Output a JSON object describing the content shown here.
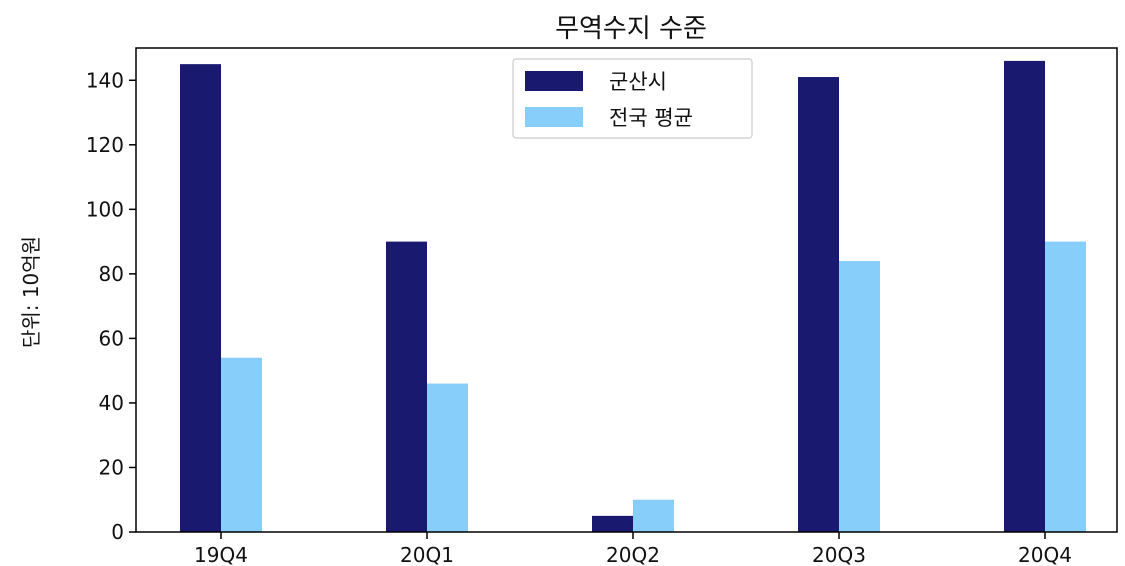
{
  "chart_data": {
    "type": "bar",
    "title": "무역수지 수준",
    "xlabel": "",
    "ylabel": "단위: 10억원",
    "categories": [
      "19Q4",
      "20Q1",
      "20Q2",
      "20Q3",
      "20Q4"
    ],
    "ylim": [
      0,
      150
    ],
    "yticks": [
      0,
      20,
      40,
      60,
      80,
      100,
      120,
      140
    ],
    "grid": false,
    "legend_position": "top-center",
    "series": [
      {
        "name": "군산시",
        "color": "#191970",
        "values": [
          145,
          90,
          5,
          141,
          146
        ]
      },
      {
        "name": "전국 평균",
        "color": "#87CEFA",
        "values": [
          54,
          46,
          10,
          84,
          90
        ]
      }
    ]
  }
}
